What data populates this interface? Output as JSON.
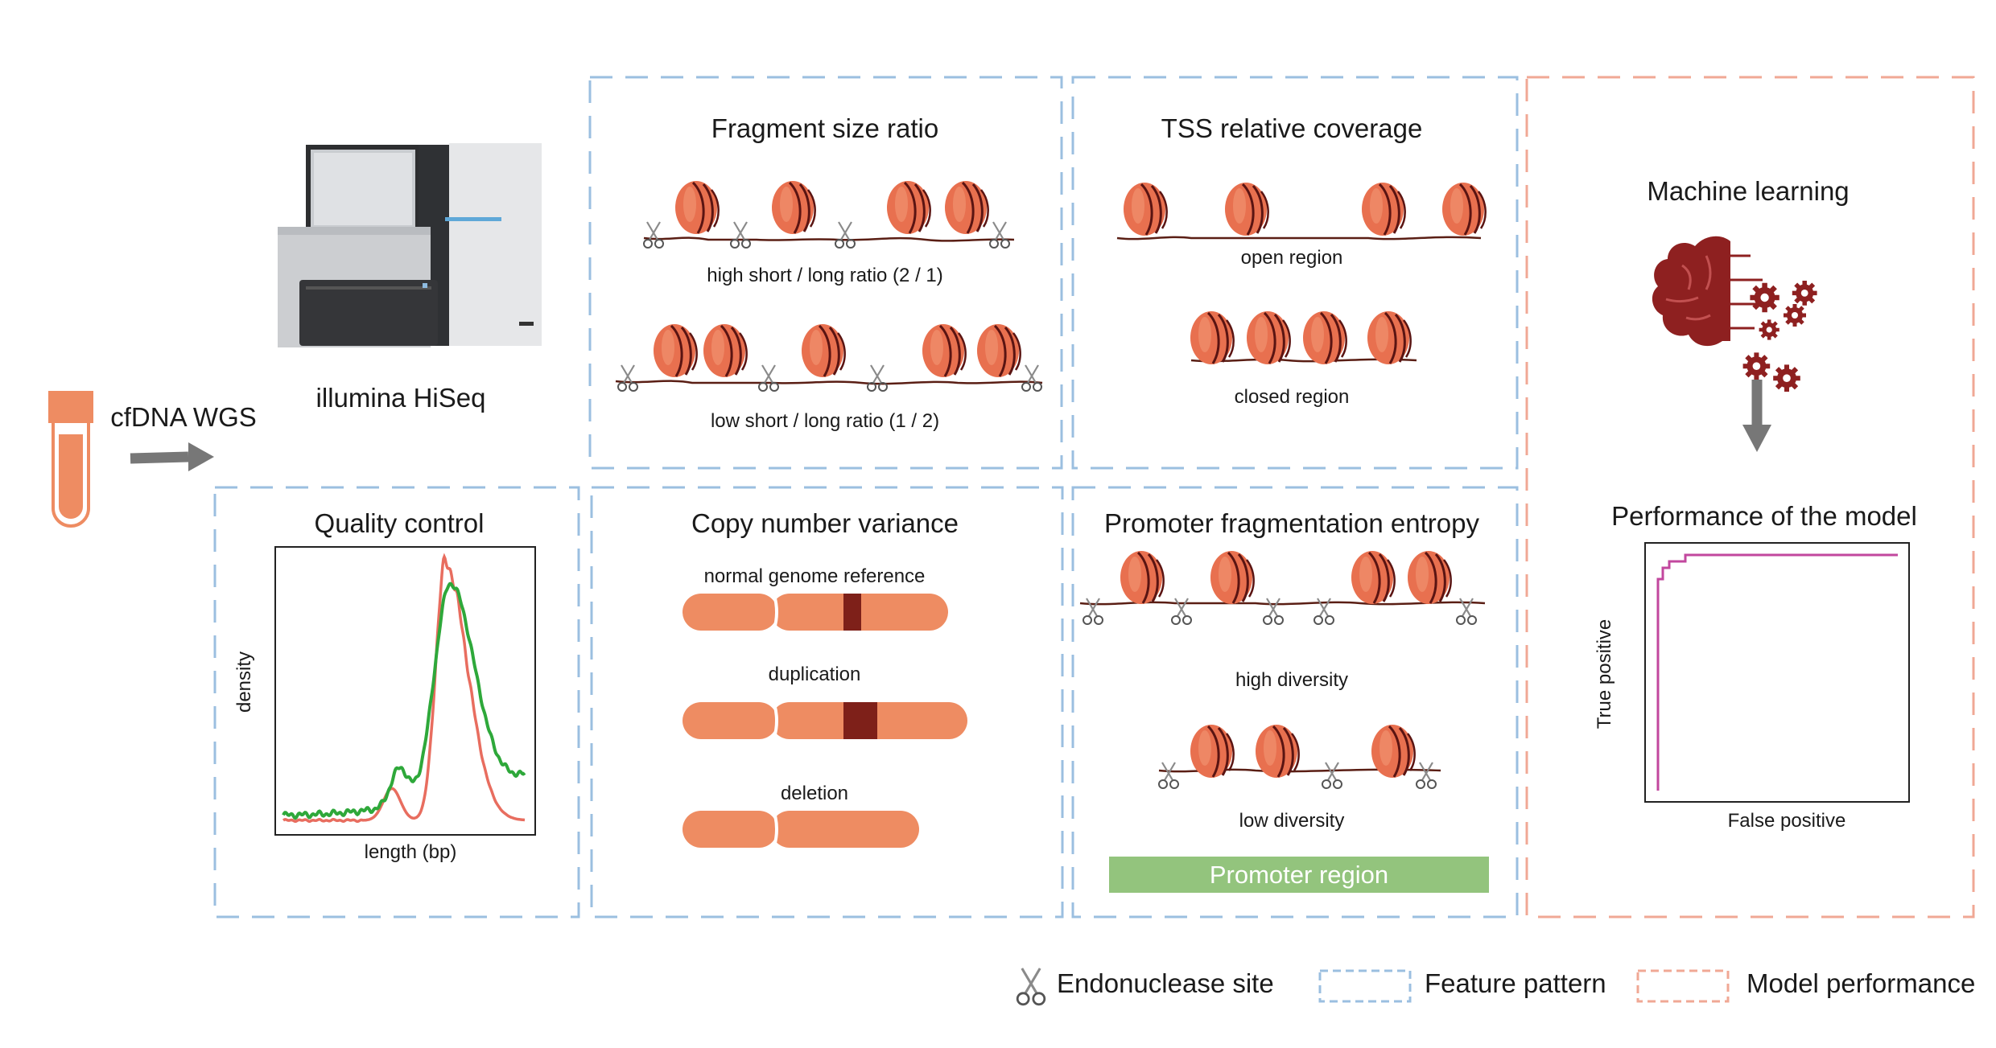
{
  "input": {
    "sample_label": "cfDNA WGS",
    "sequencer_label": "illumina HiSeq"
  },
  "panels": {
    "fragment_size": {
      "title": "Fragment size ratio",
      "top_caption": "high short / long ratio (2 / 1)",
      "bottom_caption": "low short / long ratio (1 / 2)"
    },
    "tss": {
      "title": "TSS relative coverage",
      "open_caption": "open region",
      "closed_caption": "closed region"
    },
    "qc": {
      "title": "Quality control",
      "xlabel": "length (bp)",
      "ylabel": "density"
    },
    "cnv": {
      "title": "Copy number variance",
      "normal_caption": "normal genome reference",
      "dup_caption": "duplication",
      "del_caption": "deletion"
    },
    "pfe": {
      "title": "Promoter fragmentation entropy",
      "high_caption": "high diversity",
      "low_caption": "low diversity",
      "region_label": "Promoter region"
    }
  },
  "model": {
    "ml_title": "Machine learning",
    "perf_title": "Performance of the model",
    "roc_xlabel": "False positive",
    "roc_ylabel": "True positive"
  },
  "legend": {
    "endonuclease": "Endonuclease site",
    "feature": "Feature pattern",
    "model": "Model performance"
  },
  "colors": {
    "feature_border": "#9bbfe0",
    "model_border": "#f0a895",
    "nucleosome": "#e8704f",
    "chromosome": "#ee8c62",
    "chromosome_band": "#7e2019",
    "qc_red": "#e86d5f",
    "qc_green": "#2ea83a",
    "roc": "#c2479e",
    "promoter_bar": "#93c47d",
    "brain": "#8e2020"
  }
}
